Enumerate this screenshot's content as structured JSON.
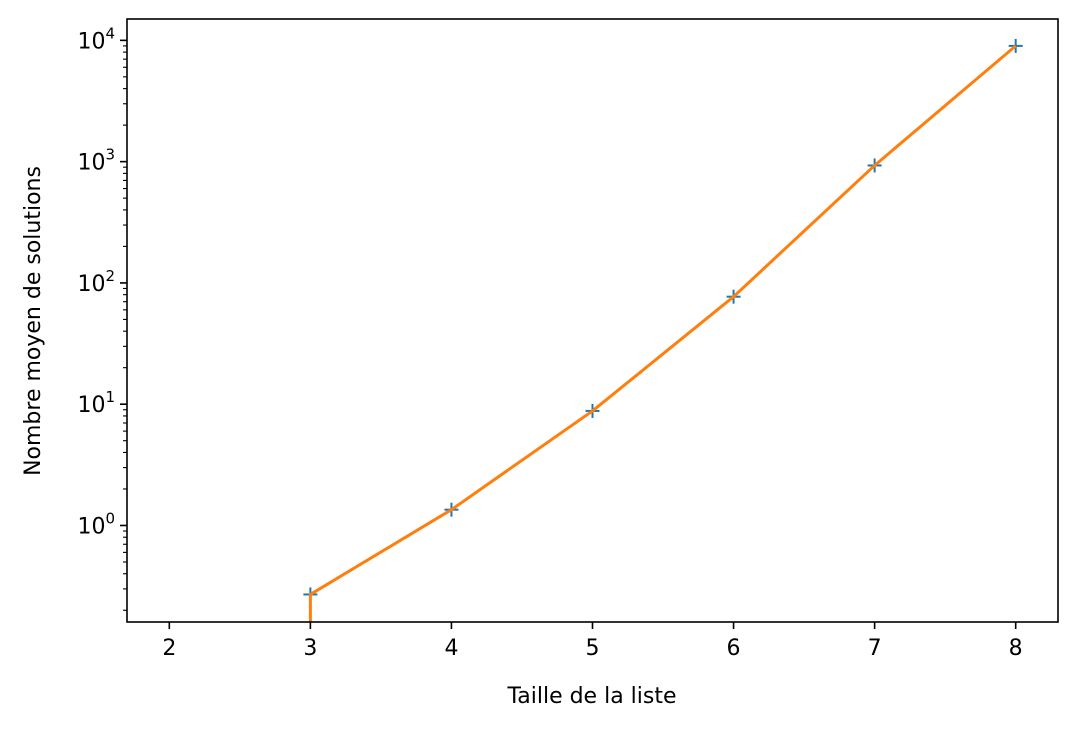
{
  "chart_data": {
    "type": "line",
    "title": "",
    "xlabel": "Taille de la liste",
    "ylabel": "Nombre moyen de solutions",
    "xlim": [
      1.7,
      8.3
    ],
    "ylim": [
      0.16,
      15000
    ],
    "yscale": "log",
    "grid": false,
    "x_ticks": [
      2,
      3,
      4,
      5,
      6,
      7,
      8
    ],
    "y_ticks": [
      {
        "value": 1,
        "base": "10",
        "exp": "0"
      },
      {
        "value": 10,
        "base": "10",
        "exp": "1"
      },
      {
        "value": 100,
        "base": "10",
        "exp": "2"
      },
      {
        "value": 1000,
        "base": "10",
        "exp": "3"
      },
      {
        "value": 10000,
        "base": "10",
        "exp": "4"
      }
    ],
    "series": [
      {
        "style": "markers",
        "marker": "+",
        "color": "#1f77b4",
        "x": [
          3,
          4,
          5,
          6,
          7,
          8
        ],
        "y": [
          0.27,
          1.35,
          8.8,
          77,
          930,
          9000
        ]
      },
      {
        "style": "line",
        "color": "#ff7f0e",
        "x": [
          3,
          3,
          4,
          5,
          6,
          7,
          8
        ],
        "y": [
          0.16,
          0.27,
          1.35,
          8.8,
          77,
          930,
          9000
        ]
      }
    ]
  }
}
